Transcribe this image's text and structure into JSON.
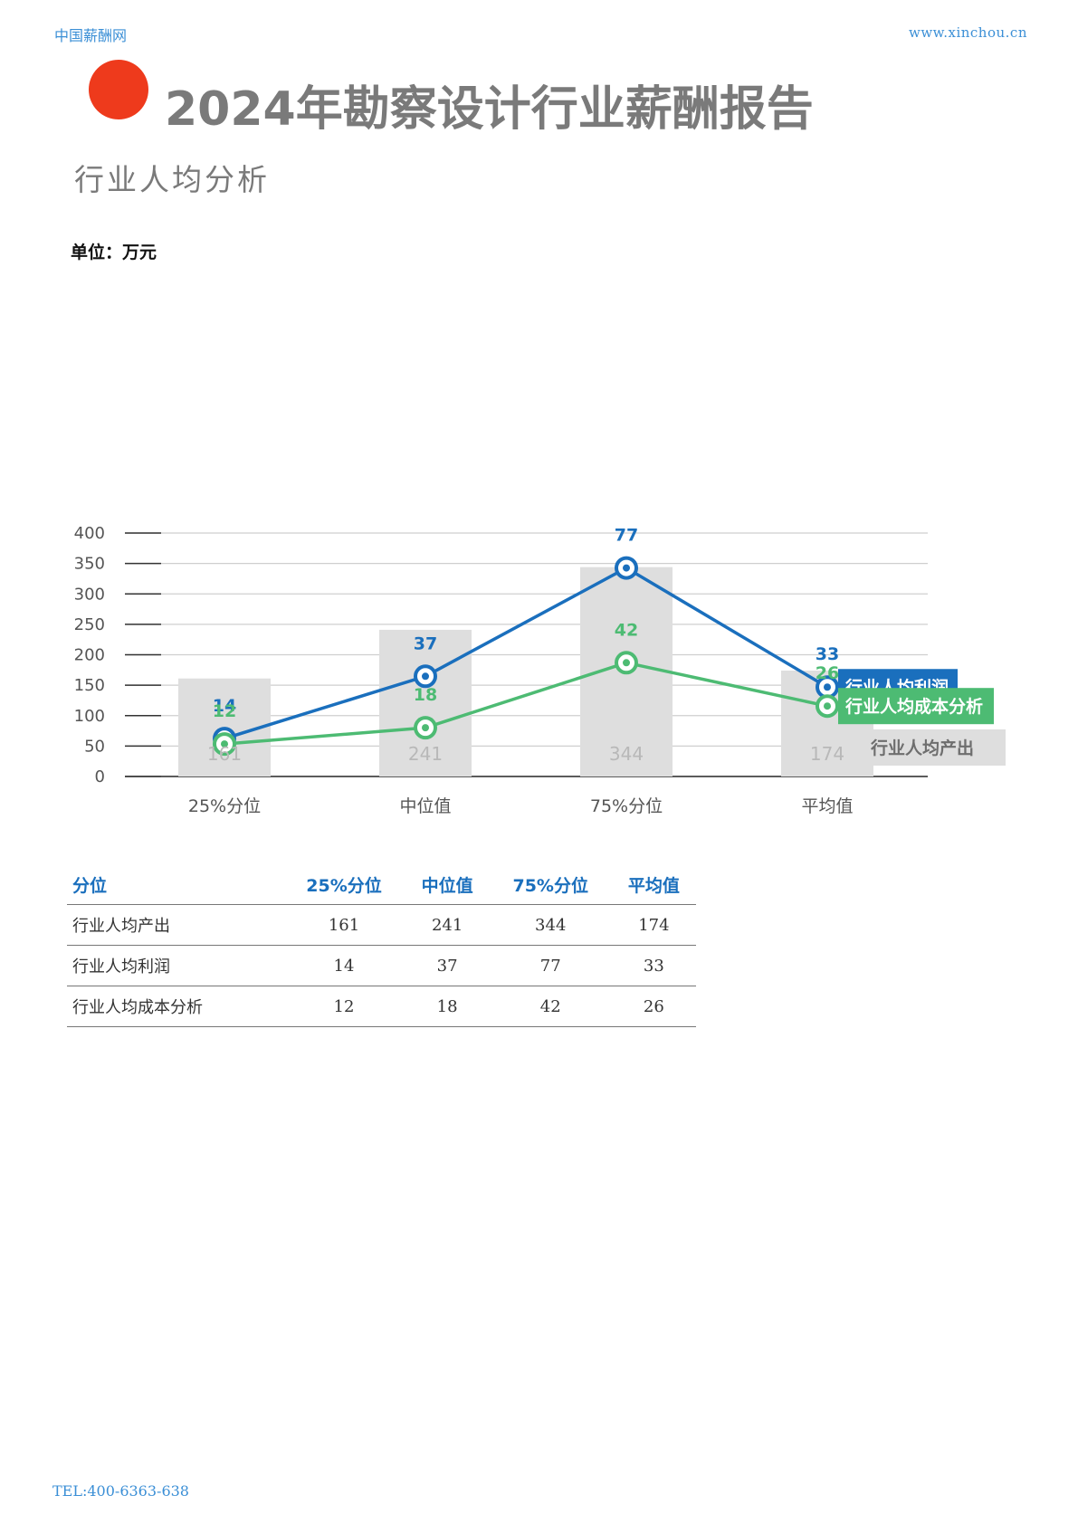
{
  "header": {
    "brand": "中国薪酬网",
    "url": "www.xinchou.cn"
  },
  "title": "2024年勘察设计行业薪酬报告",
  "subtitle": "行业人均分析",
  "unit_label": "单位：万元",
  "colors": {
    "accent_dot": "#ee3a1c",
    "bar": "#dedede",
    "profit": "#1a6fbd",
    "cost": "#4dbb73"
  },
  "chart_data": {
    "type": "bar",
    "categories": [
      "25%分位",
      "中位值",
      "75%分位",
      "平均值"
    ],
    "ylim": [
      0,
      400
    ],
    "yticks": [
      0,
      50,
      100,
      150,
      200,
      250,
      300,
      350,
      400
    ],
    "grid": true,
    "series": [
      {
        "name": "行业人均产出",
        "kind": "bar",
        "values": [
          161,
          241,
          344,
          174
        ],
        "labels": [
          "161",
          "241",
          "344",
          "174"
        ]
      },
      {
        "name": "行业人均利润",
        "kind": "line",
        "values": [
          14,
          37,
          77,
          33
        ],
        "labels": [
          "14",
          "37",
          "77",
          "33"
        ]
      },
      {
        "name": "行业人均成本分析",
        "kind": "line",
        "values": [
          12,
          18,
          42,
          26
        ],
        "labels": [
          "12",
          "18",
          "42",
          "26"
        ]
      }
    ]
  },
  "table": {
    "headers": [
      "分位",
      "25%分位",
      "中位值",
      "75%分位",
      "平均值"
    ],
    "rows": [
      {
        "label": "行业人均产出",
        "values": [
          "161",
          "241",
          "344",
          "174"
        ]
      },
      {
        "label": "行业人均利润",
        "values": [
          "14",
          "37",
          "77",
          "33"
        ]
      },
      {
        "label": "行业人均成本分析",
        "values": [
          "12",
          "18",
          "42",
          "26"
        ]
      }
    ]
  },
  "footer": {
    "tel": "TEL:400-6363-638"
  }
}
